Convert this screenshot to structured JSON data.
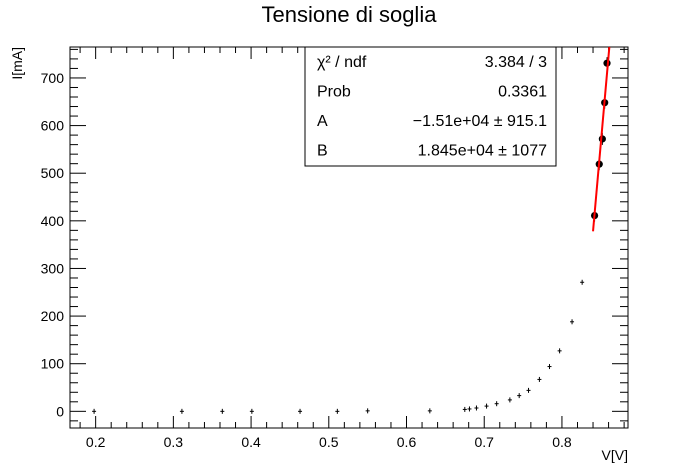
{
  "chart_data": {
    "type": "scatter",
    "title": "Tensione di soglia",
    "xlabel": "V[V]",
    "ylabel": "I[mA]",
    "xlim": [
      0.167,
      0.885
    ],
    "ylim": [
      -35,
      765
    ],
    "grid": false,
    "x_ticks": [
      0.2,
      0.3,
      0.4,
      0.5,
      0.6,
      0.7,
      0.8
    ],
    "x_tick_labels": [
      "0.2",
      "0.3",
      "0.4",
      "0.5",
      "0.6",
      "0.7",
      "0.8"
    ],
    "y_ticks": [
      0,
      100,
      200,
      300,
      400,
      500,
      600,
      700
    ],
    "y_tick_labels": [
      "0",
      "100",
      "200",
      "300",
      "400",
      "500",
      "600",
      "700"
    ],
    "series": [
      {
        "points": [
          {
            "x": 0.198,
            "y": 0
          },
          {
            "x": 0.311,
            "y": 0
          },
          {
            "x": 0.363,
            "y": 0
          },
          {
            "x": 0.401,
            "y": 0
          },
          {
            "x": 0.463,
            "y": 0
          },
          {
            "x": 0.511,
            "y": 0
          },
          {
            "x": 0.55,
            "y": 1
          },
          {
            "x": 0.63,
            "y": 1
          },
          {
            "x": 0.675,
            "y": 4
          },
          {
            "x": 0.681,
            "y": 5
          },
          {
            "x": 0.69,
            "y": 7
          },
          {
            "x": 0.703,
            "y": 11
          },
          {
            "x": 0.716,
            "y": 16
          },
          {
            "x": 0.733,
            "y": 24
          },
          {
            "x": 0.745,
            "y": 33
          },
          {
            "x": 0.757,
            "y": 44
          },
          {
            "x": 0.771,
            "y": 67
          },
          {
            "x": 0.784,
            "y": 94
          },
          {
            "x": 0.797,
            "y": 127
          },
          {
            "x": 0.813,
            "y": 188
          },
          {
            "x": 0.826,
            "y": 271
          },
          {
            "x": 0.842,
            "y": 411
          },
          {
            "x": 0.848,
            "y": 519
          },
          {
            "x": 0.852,
            "y": 572
          },
          {
            "x": 0.855,
            "y": 648
          },
          {
            "x": 0.858,
            "y": 731
          }
        ]
      }
    ],
    "fit": {
      "color": "#ff0000",
      "x_range": [
        0.84,
        0.861
      ],
      "line": [
        {
          "x": 0.84,
          "y": 378
        },
        {
          "x": 0.861,
          "y": 765
        }
      ]
    },
    "stats": {
      "rows": [
        {
          "label": "χ² / ndf",
          "value": "3.384 / 3"
        },
        {
          "label": "Prob",
          "value": "0.3361"
        },
        {
          "label": "A",
          "value": "−1.51e+04 ± 915.1"
        },
        {
          "label": "B",
          "value": "1.845e+04 ±  1077"
        }
      ]
    }
  }
}
